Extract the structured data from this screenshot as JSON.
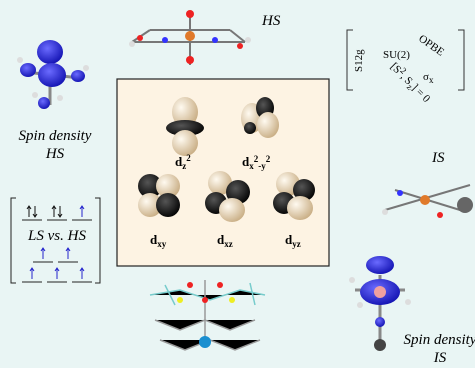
{
  "hs_top": "HS",
  "is_label": "IS",
  "spin_density_hs": [
    "Spin density",
    "HS"
  ],
  "spin_density_is": [
    "Spin density",
    "IS"
  ],
  "ls_vs_hs": "LS vs. HS",
  "symmetry": {
    "s12g": "S12g",
    "su2": "SU(2)",
    "opbe": "OPBE",
    "commutator": {
      "open": "[S",
      "sup": "2",
      "mid": ", S",
      "sub": "z",
      "close": "] = 0"
    },
    "sigma": {
      "base": "σ",
      "sub": "x"
    }
  },
  "orbitals": [
    {
      "base": "d",
      "sub": "z",
      "sup": "2"
    },
    {
      "base": "d",
      "sub": "x",
      "sup": "2",
      "sub2": "-y",
      "sup2": "2"
    },
    {
      "base": "d",
      "sub": "xy"
    },
    {
      "base": "d",
      "sub": "xz"
    },
    {
      "base": "d",
      "sub": "yz"
    }
  ]
}
